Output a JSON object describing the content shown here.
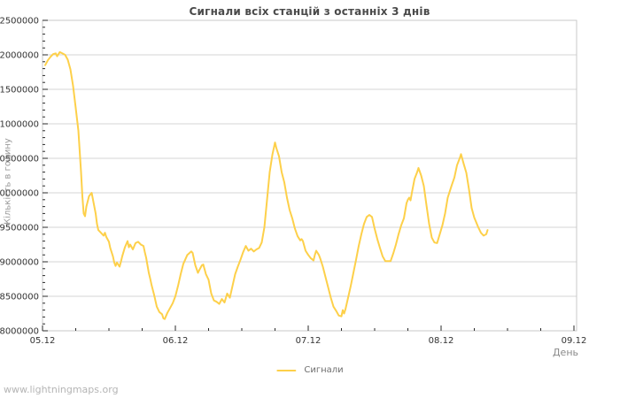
{
  "watermark": "www.lightningmaps.org",
  "colors": {
    "background": "#ffffff",
    "line": "#fdd04a",
    "grid": "#d4d4d4",
    "frame": "#c9c9c9",
    "tick": "#2a2a2a",
    "tick_label": "#333333",
    "title": "#4a4a4a",
    "axis_title": "#999999",
    "legend_text": "#6e6e6e",
    "watermark_text": "#b5b5b5"
  },
  "chart_data": {
    "type": "line",
    "title": "Сигнали всіх станцій з останніх 3 днів",
    "xlabel": "День",
    "ylabel": "Кількість в годину",
    "x_tick_labels": [
      "05.12",
      "06.12",
      "07.12",
      "08.12",
      "09.12"
    ],
    "x_range_days": [
      0,
      4
    ],
    "x_minor_step_days": 0.25,
    "ylim": [
      8000000,
      12500000
    ],
    "y_tick_step": 500000,
    "y_minor_step": 100000,
    "grid": "horizontal-only",
    "legend": {
      "position": "bottom-center",
      "entries": [
        {
          "label": "Сигнали",
          "color": "#fdd04a"
        }
      ]
    },
    "series": [
      {
        "name": "Сигнали",
        "color": "#fdd04a",
        "points": [
          [
            0.02,
            11850000
          ],
          [
            0.04,
            11920000
          ],
          [
            0.06,
            11970000
          ],
          [
            0.08,
            12010000
          ],
          [
            0.1,
            12020000
          ],
          [
            0.11,
            11980000
          ],
          [
            0.13,
            12040000
          ],
          [
            0.15,
            12020000
          ],
          [
            0.17,
            12000000
          ],
          [
            0.19,
            11930000
          ],
          [
            0.21,
            11790000
          ],
          [
            0.23,
            11550000
          ],
          [
            0.25,
            11230000
          ],
          [
            0.27,
            10900000
          ],
          [
            0.28,
            10600000
          ],
          [
            0.29,
            10300000
          ],
          [
            0.3,
            9950000
          ],
          [
            0.31,
            9700000
          ],
          [
            0.32,
            9660000
          ],
          [
            0.33,
            9800000
          ],
          [
            0.35,
            9950000
          ],
          [
            0.37,
            10000000
          ],
          [
            0.38,
            9900000
          ],
          [
            0.4,
            9700000
          ],
          [
            0.41,
            9550000
          ],
          [
            0.42,
            9460000
          ],
          [
            0.44,
            9420000
          ],
          [
            0.46,
            9380000
          ],
          [
            0.47,
            9420000
          ],
          [
            0.48,
            9360000
          ],
          [
            0.5,
            9290000
          ],
          [
            0.51,
            9200000
          ],
          [
            0.53,
            9080000
          ],
          [
            0.54,
            8990000
          ],
          [
            0.55,
            8940000
          ],
          [
            0.56,
            8990000
          ],
          [
            0.58,
            8930000
          ],
          [
            0.59,
            9000000
          ],
          [
            0.6,
            9080000
          ],
          [
            0.62,
            9210000
          ],
          [
            0.64,
            9300000
          ],
          [
            0.65,
            9210000
          ],
          [
            0.66,
            9250000
          ],
          [
            0.68,
            9180000
          ],
          [
            0.7,
            9270000
          ],
          [
            0.72,
            9290000
          ],
          [
            0.74,
            9250000
          ],
          [
            0.76,
            9230000
          ],
          [
            0.77,
            9140000
          ],
          [
            0.78,
            9060000
          ],
          [
            0.79,
            8950000
          ],
          [
            0.8,
            8840000
          ],
          [
            0.81,
            8760000
          ],
          [
            0.82,
            8670000
          ],
          [
            0.84,
            8520000
          ],
          [
            0.86,
            8350000
          ],
          [
            0.88,
            8270000
          ],
          [
            0.9,
            8240000
          ],
          [
            0.91,
            8180000
          ],
          [
            0.92,
            8170000
          ],
          [
            0.94,
            8260000
          ],
          [
            0.96,
            8330000
          ],
          [
            0.98,
            8400000
          ],
          [
            1.0,
            8500000
          ],
          [
            1.02,
            8650000
          ],
          [
            1.04,
            8820000
          ],
          [
            1.06,
            8970000
          ],
          [
            1.09,
            9100000
          ],
          [
            1.12,
            9150000
          ],
          [
            1.13,
            9130000
          ],
          [
            1.15,
            8950000
          ],
          [
            1.17,
            8840000
          ],
          [
            1.18,
            8880000
          ],
          [
            1.2,
            8950000
          ],
          [
            1.21,
            8960000
          ],
          [
            1.23,
            8820000
          ],
          [
            1.25,
            8740000
          ],
          [
            1.27,
            8540000
          ],
          [
            1.29,
            8440000
          ],
          [
            1.31,
            8420000
          ],
          [
            1.33,
            8390000
          ],
          [
            1.35,
            8460000
          ],
          [
            1.37,
            8410000
          ],
          [
            1.39,
            8540000
          ],
          [
            1.41,
            8480000
          ],
          [
            1.43,
            8650000
          ],
          [
            1.45,
            8820000
          ],
          [
            1.47,
            8930000
          ],
          [
            1.49,
            9030000
          ],
          [
            1.51,
            9140000
          ],
          [
            1.53,
            9230000
          ],
          [
            1.55,
            9160000
          ],
          [
            1.57,
            9190000
          ],
          [
            1.59,
            9150000
          ],
          [
            1.61,
            9180000
          ],
          [
            1.63,
            9200000
          ],
          [
            1.65,
            9280000
          ],
          [
            1.67,
            9500000
          ],
          [
            1.69,
            9900000
          ],
          [
            1.71,
            10300000
          ],
          [
            1.73,
            10550000
          ],
          [
            1.75,
            10730000
          ],
          [
            1.76,
            10650000
          ],
          [
            1.78,
            10530000
          ],
          [
            1.8,
            10300000
          ],
          [
            1.82,
            10150000
          ],
          [
            1.84,
            9930000
          ],
          [
            1.86,
            9750000
          ],
          [
            1.88,
            9630000
          ],
          [
            1.9,
            9480000
          ],
          [
            1.92,
            9370000
          ],
          [
            1.94,
            9310000
          ],
          [
            1.95,
            9330000
          ],
          [
            1.96,
            9300000
          ],
          [
            1.98,
            9160000
          ],
          [
            2.0,
            9100000
          ],
          [
            2.02,
            9050000
          ],
          [
            2.04,
            9020000
          ],
          [
            2.05,
            9100000
          ],
          [
            2.06,
            9160000
          ],
          [
            2.08,
            9100000
          ],
          [
            2.09,
            9050000
          ],
          [
            2.11,
            8930000
          ],
          [
            2.13,
            8780000
          ],
          [
            2.15,
            8630000
          ],
          [
            2.17,
            8480000
          ],
          [
            2.19,
            8350000
          ],
          [
            2.21,
            8290000
          ],
          [
            2.23,
            8220000
          ],
          [
            2.25,
            8210000
          ],
          [
            2.26,
            8300000
          ],
          [
            2.27,
            8250000
          ],
          [
            2.28,
            8310000
          ],
          [
            2.3,
            8480000
          ],
          [
            2.32,
            8650000
          ],
          [
            2.34,
            8840000
          ],
          [
            2.36,
            9030000
          ],
          [
            2.38,
            9230000
          ],
          [
            2.4,
            9400000
          ],
          [
            2.42,
            9550000
          ],
          [
            2.44,
            9650000
          ],
          [
            2.46,
            9680000
          ],
          [
            2.48,
            9650000
          ],
          [
            2.5,
            9480000
          ],
          [
            2.52,
            9330000
          ],
          [
            2.54,
            9200000
          ],
          [
            2.56,
            9080000
          ],
          [
            2.58,
            9010000
          ],
          [
            2.6,
            9010000
          ],
          [
            2.62,
            9010000
          ],
          [
            2.64,
            9120000
          ],
          [
            2.66,
            9250000
          ],
          [
            2.68,
            9400000
          ],
          [
            2.7,
            9530000
          ],
          [
            2.72,
            9630000
          ],
          [
            2.74,
            9850000
          ],
          [
            2.75,
            9900000
          ],
          [
            2.76,
            9930000
          ],
          [
            2.77,
            9890000
          ],
          [
            2.78,
            10000000
          ],
          [
            2.8,
            10200000
          ],
          [
            2.82,
            10300000
          ],
          [
            2.83,
            10360000
          ],
          [
            2.85,
            10250000
          ],
          [
            2.87,
            10100000
          ],
          [
            2.89,
            9820000
          ],
          [
            2.91,
            9550000
          ],
          [
            2.93,
            9350000
          ],
          [
            2.95,
            9280000
          ],
          [
            2.97,
            9270000
          ],
          [
            2.99,
            9400000
          ],
          [
            3.01,
            9530000
          ],
          [
            3.03,
            9700000
          ],
          [
            3.05,
            9930000
          ],
          [
            3.08,
            10110000
          ],
          [
            3.1,
            10220000
          ],
          [
            3.12,
            10400000
          ],
          [
            3.14,
            10500000
          ],
          [
            3.15,
            10560000
          ],
          [
            3.17,
            10420000
          ],
          [
            3.19,
            10290000
          ],
          [
            3.21,
            10050000
          ],
          [
            3.23,
            9780000
          ],
          [
            3.25,
            9640000
          ],
          [
            3.28,
            9500000
          ],
          [
            3.3,
            9420000
          ],
          [
            3.32,
            9380000
          ],
          [
            3.34,
            9400000
          ],
          [
            3.35,
            9460000
          ]
        ]
      }
    ]
  }
}
